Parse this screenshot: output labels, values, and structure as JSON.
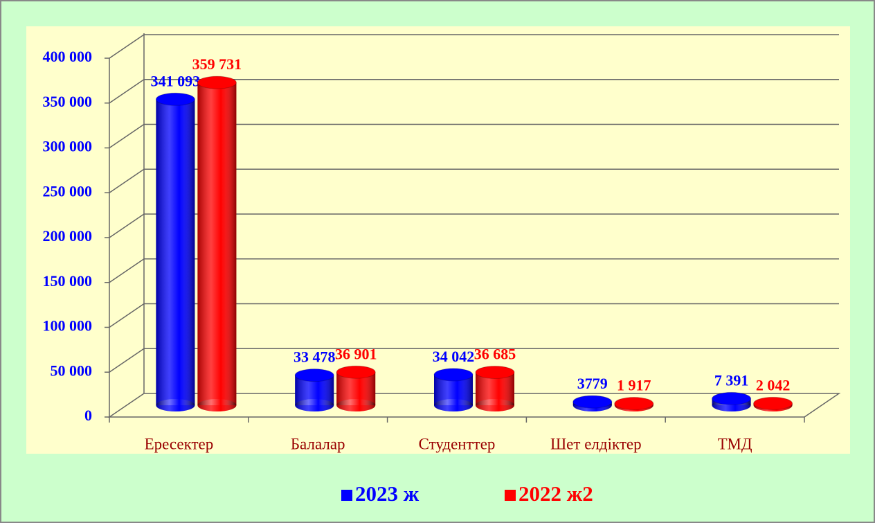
{
  "chart_data": {
    "type": "bar3d",
    "categories": [
      "Ересектер",
      "Балалар",
      "Студенттер",
      "Шет елдіктер",
      "ТМД"
    ],
    "series": [
      {
        "name": "2023 ж",
        "color": "#0000ff",
        "values": [
          341093,
          33478,
          34042,
          3779,
          7391
        ],
        "value_labels": [
          "341 093",
          "33 478",
          "34 042",
          "3779",
          "7 391"
        ]
      },
      {
        "name": "2022 ж2",
        "color": "#ff0000",
        "values": [
          359731,
          36901,
          36685,
          1917,
          2042
        ],
        "value_labels": [
          "359 731",
          "36 901",
          "36 685",
          "1 917",
          "2 042"
        ]
      }
    ],
    "ylim": [
      0,
      400000
    ],
    "yticks": [
      0,
      {
        "value": 50000,
        "label": "50 000"
      },
      {
        "value": 100000,
        "label": "100 000"
      },
      {
        "value": 150000,
        "label": "150 000"
      },
      {
        "value": 200000,
        "label": "200 000"
      },
      {
        "value": 250000,
        "label": "250 000"
      },
      {
        "value": 300000,
        "label": "300 000"
      },
      {
        "value": 350000,
        "label": "350 000"
      },
      {
        "value": 400000,
        "label": "400 000"
      }
    ],
    "grid": true,
    "legend": "bottom"
  }
}
